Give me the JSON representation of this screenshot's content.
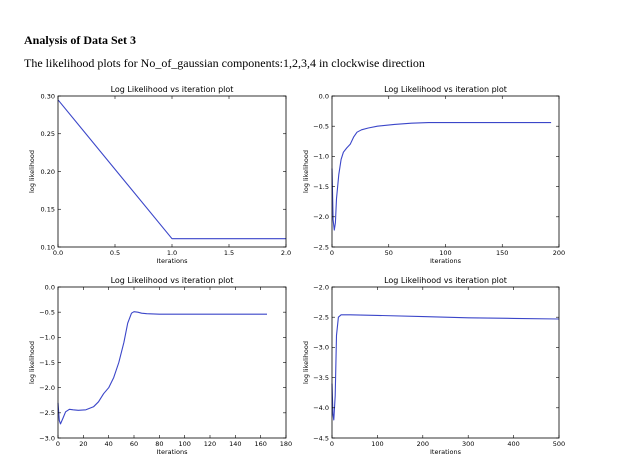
{
  "page": {
    "heading": "Analysis of Data Set 3",
    "subtitle": "The likelihood plots for No_of_gaussian components:1,2,3,4 in clockwise direction"
  },
  "colors": {
    "line": "#3b46c9",
    "axis": "#000000",
    "background": "#ffffff"
  },
  "chart_data": [
    {
      "type": "line",
      "title": "Log Likelihood vs iteration plot",
      "xlabel": "Iterations",
      "ylabel": "log likelihood",
      "xlim": [
        0,
        2
      ],
      "ylim": [
        0.1,
        0.3
      ],
      "xticks": [
        0.0,
        0.5,
        1.0,
        1.5,
        2.0
      ],
      "xtick_labels": [
        "0.0",
        "0.5",
        "1.0",
        "1.5",
        "2.0"
      ],
      "yticks": [
        0.1,
        0.15,
        0.2,
        0.25,
        0.3
      ],
      "ytick_labels": [
        "0.10",
        "0.15",
        "0.20",
        "0.25",
        "0.30"
      ],
      "grid": false,
      "series": [
        {
          "x": [
            0,
            1,
            2
          ],
          "y": [
            0.295,
            0.111,
            0.111
          ]
        }
      ]
    },
    {
      "type": "line",
      "title": "Log Likelihood vs iteration plot",
      "xlabel": "Iterations",
      "ylabel": "log likelihood",
      "xlim": [
        0,
        200
      ],
      "ylim": [
        -2.5,
        0.0
      ],
      "xticks": [
        0,
        50,
        100,
        150,
        200
      ],
      "xtick_labels": [
        "0",
        "50",
        "100",
        "150",
        "200"
      ],
      "yticks": [
        -2.5,
        -2.0,
        -1.5,
        -1.0,
        -0.5,
        0.0
      ],
      "ytick_labels": [
        "−2.5",
        "−2.0",
        "−1.5",
        "−1.0",
        "−0.5",
        "0.0"
      ],
      "grid": false,
      "series": [
        {
          "x": [
            0,
            1,
            2,
            3,
            4,
            6,
            8,
            10,
            13,
            16,
            19,
            22,
            26,
            32,
            40,
            55,
            70,
            85,
            100,
            130,
            160,
            193
          ],
          "y": [
            -1.2,
            -2.05,
            -2.22,
            -2.1,
            -1.7,
            -1.3,
            -1.05,
            -0.93,
            -0.86,
            -0.8,
            -0.68,
            -0.6,
            -0.56,
            -0.53,
            -0.5,
            -0.47,
            -0.45,
            -0.44,
            -0.44,
            -0.44,
            -0.44,
            -0.44
          ]
        }
      ]
    },
    {
      "type": "line",
      "title": "Log Likelihood vs iteration plot",
      "xlabel": "Iterations",
      "ylabel": "log likelihood",
      "xlim": [
        0,
        180
      ],
      "ylim": [
        -3.0,
        0.0
      ],
      "xticks": [
        0,
        20,
        40,
        60,
        80,
        100,
        120,
        140,
        160,
        180
      ],
      "xtick_labels": [
        "0",
        "20",
        "40",
        "60",
        "80",
        "100",
        "120",
        "140",
        "160",
        "180"
      ],
      "yticks": [
        -3.0,
        -2.5,
        -2.0,
        -1.5,
        -1.0,
        -0.5,
        0.0
      ],
      "ytick_labels": [
        "−3.0",
        "−2.5",
        "−2.0",
        "−1.5",
        "−1.0",
        "−0.5",
        "0.0"
      ],
      "grid": false,
      "series": [
        {
          "x": [
            0,
            1,
            2,
            4,
            6,
            9,
            12,
            16,
            22,
            28,
            32,
            36,
            40,
            44,
            48,
            52,
            55,
            58,
            60,
            63,
            66,
            70,
            80,
            100,
            130,
            165
          ],
          "y": [
            -2.3,
            -2.65,
            -2.72,
            -2.6,
            -2.48,
            -2.43,
            -2.44,
            -2.45,
            -2.44,
            -2.38,
            -2.28,
            -2.12,
            -2.0,
            -1.8,
            -1.5,
            -1.1,
            -0.72,
            -0.52,
            -0.49,
            -0.5,
            -0.52,
            -0.53,
            -0.54,
            -0.54,
            -0.54,
            -0.54
          ]
        }
      ]
    },
    {
      "type": "line",
      "title": "Log Likelihood vs iteration plot",
      "xlabel": "Iterations",
      "ylabel": "log likelihood",
      "xlim": [
        0,
        500
      ],
      "ylim": [
        -4.5,
        -2.0
      ],
      "xticks": [
        0,
        100,
        200,
        300,
        400,
        500
      ],
      "xtick_labels": [
        "0",
        "100",
        "200",
        "300",
        "400",
        "500"
      ],
      "yticks": [
        -4.5,
        -4.0,
        -3.5,
        -3.0,
        -2.5,
        -2.0
      ],
      "ytick_labels": [
        "−4.5",
        "−4.0",
        "−3.5",
        "−3.0",
        "−2.5",
        "−2.0"
      ],
      "grid": false,
      "series": [
        {
          "x": [
            0,
            2,
            4,
            7,
            10,
            14,
            20,
            40,
            100,
            200,
            300,
            400,
            500
          ],
          "y": [
            -3.6,
            -4.1,
            -4.2,
            -3.8,
            -2.8,
            -2.5,
            -2.46,
            -2.46,
            -2.47,
            -2.49,
            -2.51,
            -2.52,
            -2.53
          ]
        }
      ]
    }
  ]
}
